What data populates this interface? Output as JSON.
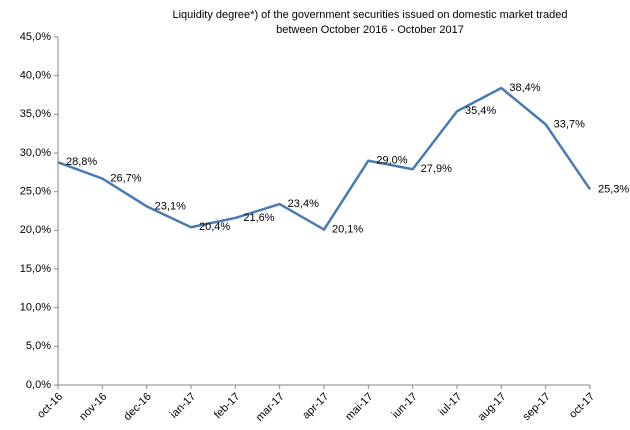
{
  "chart_data": {
    "type": "line",
    "title": [
      "Liquidity degree*) of the government securities issued on domestic market traded",
      "between October 2016 - October 2017"
    ],
    "categories": [
      "oct-16",
      "nov-16",
      "dec-16",
      "ian-17",
      "feb-17",
      "mar-17",
      "apr-17",
      "mai-17",
      "iun-17",
      "iul-17",
      "aug-17",
      "sep-17",
      "oct-17"
    ],
    "series": [
      {
        "color": "#4a7ab5",
        "values": [
          28.8,
          26.7,
          23.1,
          20.4,
          21.6,
          23.4,
          20.1,
          29.0,
          27.9,
          35.4,
          38.4,
          33.7,
          25.3
        ],
        "value_labels": [
          "28,8%",
          "26,7%",
          "23,1%",
          "20,4%",
          "21,6%",
          "23,4%",
          "20,1%",
          "29,0%",
          "27,9%",
          "35,4%",
          "38,4%",
          "33,7%",
          "25,3%"
        ]
      }
    ],
    "ylim": [
      0,
      45
    ],
    "yticks": [
      {
        "value": 0,
        "label": "0,0%"
      },
      {
        "value": 5,
        "label": "5,0%"
      },
      {
        "value": 10,
        "label": "10,0%"
      },
      {
        "value": 15,
        "label": "15,0%"
      },
      {
        "value": 20,
        "label": "20,0%"
      },
      {
        "value": 25,
        "label": "25,0%"
      },
      {
        "value": 30,
        "label": "30,0%"
      },
      {
        "value": 35,
        "label": "35,0%"
      },
      {
        "value": 40,
        "label": "40,0%"
      },
      {
        "value": 45,
        "label": "45,0%"
      }
    ],
    "grid": false
  }
}
